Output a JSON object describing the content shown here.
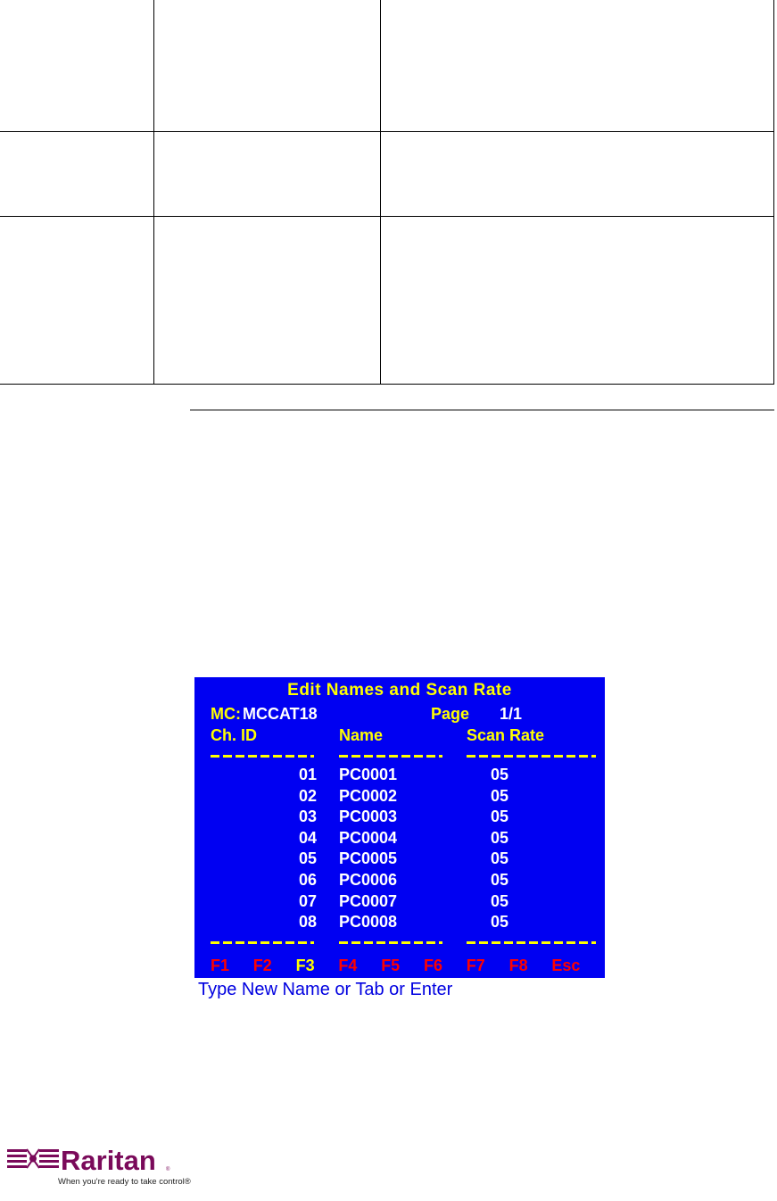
{
  "osd": {
    "title": "Edit Names and Scan Rate",
    "mc_label": "MC:",
    "mc_value": "MCCAT18",
    "page_label": "Page",
    "page_value": "1/1",
    "headers": [
      "Ch. ID",
      "Name",
      "Scan Rate"
    ],
    "rows": [
      {
        "id": "01",
        "name": "PC0001",
        "rate": "05"
      },
      {
        "id": "02",
        "name": "PC0002",
        "rate": "05"
      },
      {
        "id": "03",
        "name": "PC0003",
        "rate": "05"
      },
      {
        "id": "04",
        "name": "PC0004",
        "rate": "05"
      },
      {
        "id": "05",
        "name": "PC0005",
        "rate": "05"
      },
      {
        "id": "06",
        "name": "PC0006",
        "rate": "05"
      },
      {
        "id": "07",
        "name": "PC0007",
        "rate": "05"
      },
      {
        "id": "08",
        "name": "PC0008",
        "rate": "05"
      }
    ],
    "fkeys": [
      {
        "label": "F1",
        "color": "#ff0000"
      },
      {
        "label": "F2",
        "color": "#ff0000"
      },
      {
        "label": "F3",
        "color": "#ffff00"
      },
      {
        "label": "F4",
        "color": "#ff0000"
      },
      {
        "label": "F5",
        "color": "#ff0000"
      },
      {
        "label": "F6",
        "color": "#ff0000"
      },
      {
        "label": "F7",
        "color": "#ff0000"
      },
      {
        "label": "F8",
        "color": "#ff0000"
      },
      {
        "label": "Esc",
        "color": "#ff0000"
      }
    ],
    "status": "Type New Name or Tab or Enter",
    "background": "#0000f2"
  },
  "logo": {
    "brand": "Raritan",
    "tagline": "When you're ready to take control®",
    "color": "#7a0a5a"
  }
}
